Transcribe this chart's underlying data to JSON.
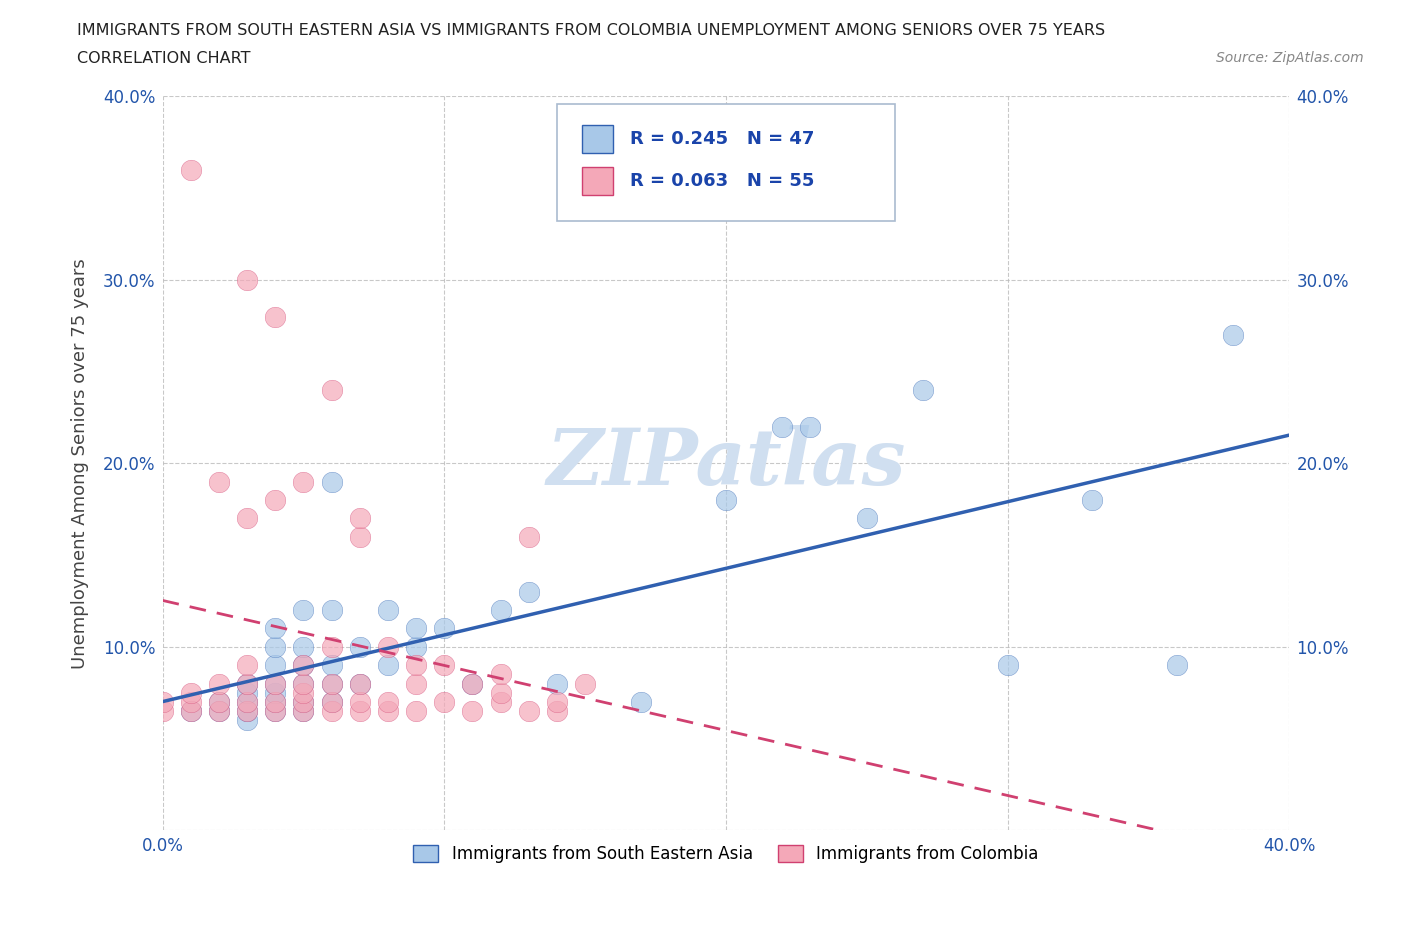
{
  "title_line1": "IMMIGRANTS FROM SOUTH EASTERN ASIA VS IMMIGRANTS FROM COLOMBIA UNEMPLOYMENT AMONG SENIORS OVER 75 YEARS",
  "title_line2": "CORRELATION CHART",
  "source": "Source: ZipAtlas.com",
  "ylabel": "Unemployment Among Seniors over 75 years",
  "xlim": [
    0.0,
    0.4
  ],
  "ylim": [
    0.0,
    0.4
  ],
  "xticks": [
    0.0,
    0.1,
    0.2,
    0.3,
    0.4
  ],
  "yticks": [
    0.0,
    0.1,
    0.2,
    0.3,
    0.4
  ],
  "xticklabels": [
    "0.0%",
    "",
    "",
    "",
    "40.0%"
  ],
  "yticklabels": [
    "",
    "10.0%",
    "20.0%",
    "30.0%",
    "40.0%"
  ],
  "right_yticklabels": [
    "10.0%",
    "20.0%",
    "30.0%",
    "40.0%"
  ],
  "legend_labels": [
    "Immigrants from South Eastern Asia",
    "Immigrants from Colombia"
  ],
  "R_asia": 0.245,
  "N_asia": 47,
  "R_colombia": 0.063,
  "N_colombia": 55,
  "color_asia": "#a8c8e8",
  "color_colombia": "#f4a8b8",
  "line_color_asia": "#3060b0",
  "line_color_colombia": "#d04070",
  "line_color_colombia_dashed": "#d04070",
  "watermark": "ZIPatlas",
  "watermark_color": "#d0dff0",
  "asia_x": [
    0.01,
    0.02,
    0.02,
    0.03,
    0.03,
    0.03,
    0.03,
    0.03,
    0.04,
    0.04,
    0.04,
    0.04,
    0.04,
    0.04,
    0.04,
    0.05,
    0.05,
    0.05,
    0.05,
    0.05,
    0.05,
    0.06,
    0.06,
    0.06,
    0.06,
    0.06,
    0.07,
    0.07,
    0.08,
    0.08,
    0.09,
    0.09,
    0.1,
    0.11,
    0.12,
    0.13,
    0.14,
    0.17,
    0.2,
    0.22,
    0.23,
    0.25,
    0.27,
    0.3,
    0.33,
    0.36,
    0.38
  ],
  "asia_y": [
    0.065,
    0.065,
    0.07,
    0.06,
    0.065,
    0.07,
    0.075,
    0.08,
    0.065,
    0.07,
    0.075,
    0.08,
    0.09,
    0.1,
    0.11,
    0.065,
    0.07,
    0.08,
    0.09,
    0.1,
    0.12,
    0.07,
    0.08,
    0.09,
    0.12,
    0.19,
    0.08,
    0.1,
    0.09,
    0.12,
    0.1,
    0.11,
    0.11,
    0.08,
    0.12,
    0.13,
    0.08,
    0.07,
    0.18,
    0.22,
    0.22,
    0.17,
    0.24,
    0.09,
    0.18,
    0.09,
    0.27
  ],
  "colombia_x": [
    0.0,
    0.0,
    0.01,
    0.01,
    0.01,
    0.01,
    0.02,
    0.02,
    0.02,
    0.02,
    0.03,
    0.03,
    0.03,
    0.03,
    0.03,
    0.03,
    0.04,
    0.04,
    0.04,
    0.04,
    0.04,
    0.05,
    0.05,
    0.05,
    0.05,
    0.05,
    0.05,
    0.06,
    0.06,
    0.06,
    0.06,
    0.06,
    0.07,
    0.07,
    0.07,
    0.07,
    0.07,
    0.08,
    0.08,
    0.08,
    0.09,
    0.09,
    0.09,
    0.1,
    0.1,
    0.11,
    0.11,
    0.12,
    0.12,
    0.12,
    0.13,
    0.13,
    0.14,
    0.14,
    0.15
  ],
  "colombia_y": [
    0.065,
    0.07,
    0.065,
    0.07,
    0.075,
    0.36,
    0.065,
    0.07,
    0.08,
    0.19,
    0.065,
    0.07,
    0.08,
    0.09,
    0.17,
    0.3,
    0.065,
    0.07,
    0.08,
    0.18,
    0.28,
    0.065,
    0.07,
    0.075,
    0.08,
    0.09,
    0.19,
    0.065,
    0.07,
    0.08,
    0.1,
    0.24,
    0.065,
    0.07,
    0.08,
    0.16,
    0.17,
    0.065,
    0.07,
    0.1,
    0.065,
    0.08,
    0.09,
    0.07,
    0.09,
    0.065,
    0.08,
    0.07,
    0.075,
    0.085,
    0.065,
    0.16,
    0.065,
    0.07,
    0.08
  ]
}
